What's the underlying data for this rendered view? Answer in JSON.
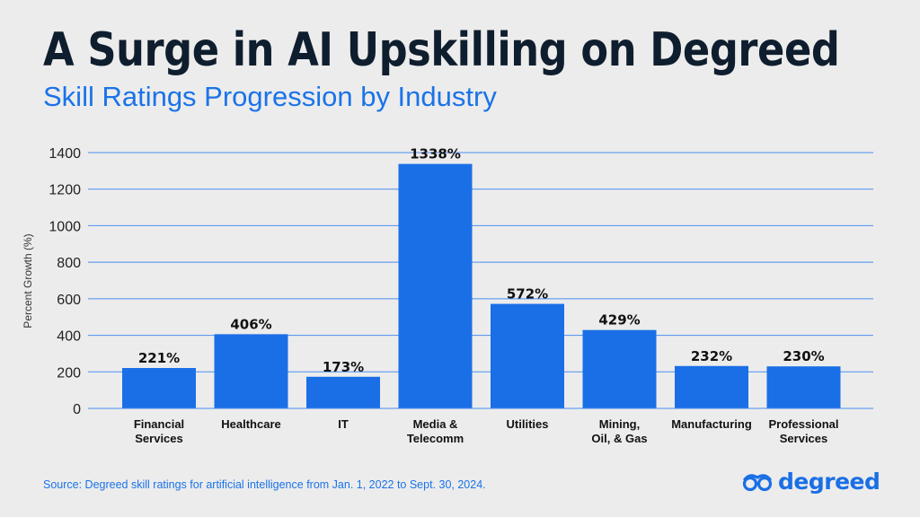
{
  "header": {
    "title": "A Surge in AI Upskilling on Degreed",
    "subtitle": "Skill Ratings Progression by Industry"
  },
  "chart_data": {
    "type": "bar",
    "categories": [
      [
        "Financial",
        "Services"
      ],
      [
        "Healthcare"
      ],
      [
        "IT"
      ],
      [
        "Media &",
        "Telecomm"
      ],
      [
        "Utilities"
      ],
      [
        "Mining,",
        "Oil, & Gas"
      ],
      [
        "Manufacturing"
      ],
      [
        "Professional",
        "Services"
      ]
    ],
    "values": [
      221,
      406,
      173,
      1338,
      572,
      429,
      232,
      230
    ],
    "data_labels": [
      "221%",
      "406%",
      "173%",
      "1338%",
      "572%",
      "429%",
      "232%",
      "230%"
    ],
    "ylabel": "Percent Growth (%)",
    "ylim": [
      0,
      1400
    ],
    "yticks": [
      0,
      200,
      400,
      600,
      800,
      1000,
      1200,
      1400
    ],
    "grid": true,
    "bar_color": "#1a6fe6",
    "grid_color": "#4a8ef0"
  },
  "footer": {
    "source": "Source: Degreed skill ratings for artificial intelligence from Jan. 1, 2022 to Sept. 30, 2024.",
    "logo_text": "degreed",
    "logo_icon": "degreed-logo-icon"
  }
}
